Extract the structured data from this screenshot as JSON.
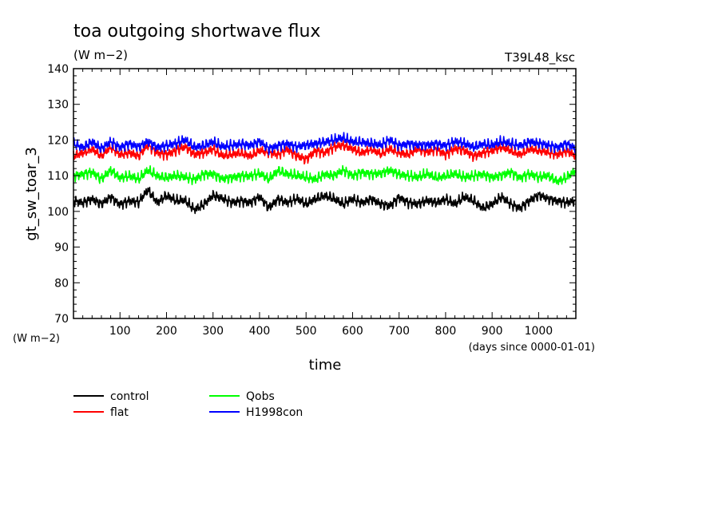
{
  "chart_data": {
    "type": "line",
    "title": "toa outgoing shortwave flux",
    "units": "(W m−2)",
    "run_label": "T39L48_ksc",
    "ylabel": "gt_sw_toar_3",
    "y_units_label": "(W m−2)",
    "xlabel": "time",
    "x_units_label": "(days since 0000-01-01)",
    "xlim": [
      0,
      1080
    ],
    "ylim": [
      70,
      140
    ],
    "x_ticks": [
      100,
      200,
      300,
      400,
      500,
      600,
      700,
      800,
      900,
      1000
    ],
    "y_ticks": [
      70,
      80,
      90,
      100,
      110,
      120,
      130,
      140
    ],
    "x": [
      0,
      20,
      40,
      60,
      80,
      100,
      120,
      140,
      160,
      180,
      200,
      220,
      240,
      260,
      280,
      300,
      320,
      340,
      360,
      380,
      400,
      420,
      440,
      460,
      480,
      500,
      520,
      540,
      560,
      580,
      600,
      620,
      640,
      660,
      680,
      700,
      720,
      740,
      760,
      780,
      800,
      820,
      840,
      860,
      880,
      900,
      920,
      940,
      960,
      980,
      1000,
      1020,
      1040,
      1060,
      1080
    ],
    "series": [
      {
        "name": "control",
        "color": "#000000",
        "values": [
          103.0,
          102.5,
          103.5,
          102.0,
          104.0,
          102.0,
          103.0,
          102.5,
          106.0,
          102.5,
          104.5,
          103.0,
          103.0,
          100.5,
          102.0,
          104.5,
          103.5,
          102.5,
          103.0,
          102.5,
          104.0,
          101.0,
          103.5,
          102.5,
          103.5,
          102.0,
          103.5,
          104.5,
          103.5,
          102.0,
          103.5,
          102.5,
          103.5,
          102.0,
          101.5,
          104.0,
          102.5,
          102.0,
          103.0,
          102.5,
          103.5,
          102.0,
          104.0,
          103.0,
          101.0,
          102.0,
          104.0,
          102.0,
          101.0,
          103.0,
          104.5,
          103.5,
          103.0,
          102.5,
          103.0
        ]
      },
      {
        "name": "flat",
        "color": "#ff0000",
        "values": [
          115.5,
          116.5,
          117.5,
          115.5,
          118.0,
          116.0,
          116.5,
          115.5,
          118.5,
          116.5,
          116.0,
          117.0,
          118.0,
          116.0,
          116.5,
          117.5,
          115.5,
          116.0,
          116.5,
          115.5,
          117.0,
          116.5,
          116.0,
          117.5,
          115.5,
          114.5,
          117.0,
          116.5,
          118.0,
          118.5,
          117.5,
          116.5,
          117.5,
          116.0,
          117.5,
          116.5,
          116.0,
          117.5,
          116.5,
          117.5,
          116.0,
          117.5,
          117.0,
          115.5,
          116.5,
          117.0,
          118.0,
          117.0,
          116.0,
          117.5,
          117.0,
          116.5,
          116.0,
          117.0,
          115.5
        ]
      },
      {
        "name": "Qobs",
        "color": "#00ff00",
        "values": [
          110.0,
          110.5,
          111.0,
          109.0,
          111.5,
          109.5,
          110.0,
          109.0,
          111.5,
          110.0,
          109.5,
          110.0,
          109.5,
          109.0,
          110.5,
          110.5,
          109.0,
          109.5,
          110.0,
          110.0,
          110.5,
          109.0,
          111.5,
          110.5,
          110.0,
          109.5,
          109.0,
          110.5,
          110.0,
          111.5,
          110.0,
          111.0,
          110.5,
          110.5,
          111.5,
          110.5,
          110.0,
          109.5,
          110.5,
          109.5,
          110.0,
          110.5,
          109.5,
          110.0,
          110.5,
          109.5,
          110.0,
          111.0,
          109.5,
          110.5,
          109.5,
          110.0,
          108.5,
          109.5,
          111.5
        ]
      },
      {
        "name": "H1998con",
        "color": "#0000ff",
        "values": [
          119.0,
          118.0,
          119.5,
          117.5,
          119.5,
          118.0,
          119.0,
          118.0,
          119.5,
          118.0,
          118.5,
          119.0,
          120.0,
          118.0,
          118.5,
          119.5,
          118.0,
          118.5,
          119.0,
          118.5,
          119.5,
          117.5,
          118.5,
          119.0,
          118.0,
          118.5,
          119.0,
          119.5,
          120.0,
          120.5,
          119.5,
          119.5,
          119.0,
          118.5,
          120.0,
          118.5,
          119.0,
          118.5,
          118.5,
          119.0,
          118.5,
          119.5,
          119.0,
          118.0,
          119.0,
          118.5,
          119.5,
          119.0,
          118.5,
          119.5,
          119.0,
          118.5,
          118.0,
          119.0,
          117.5
        ]
      }
    ],
    "legend_placement": "bottom-left"
  }
}
